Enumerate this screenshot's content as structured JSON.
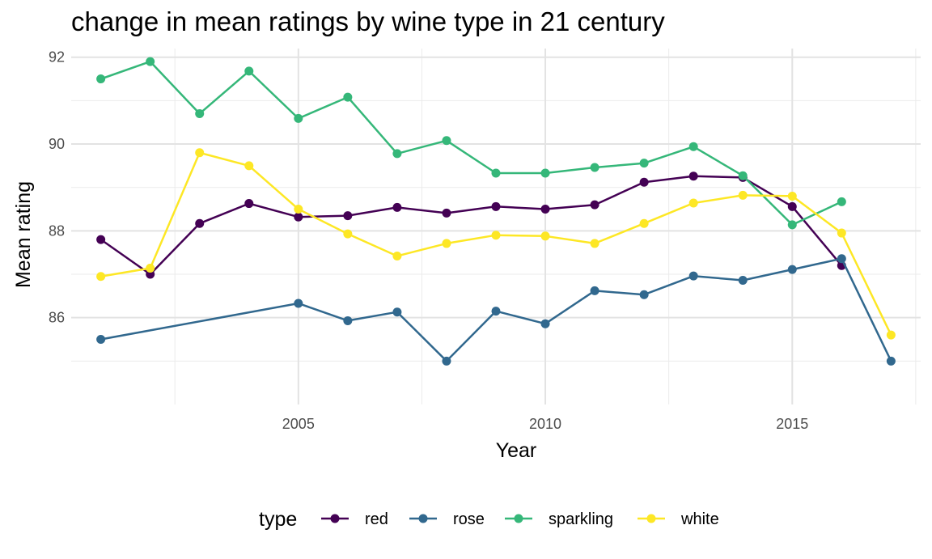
{
  "chart_data": {
    "type": "line",
    "title": "change in mean ratings by wine type in 21 century",
    "xlabel": "Year",
    "ylabel": "Mean rating",
    "xlim": [
      2000.4,
      2017.6
    ],
    "ylim": [
      84.0,
      92.2
    ],
    "x_ticks": [
      2005,
      2010,
      2015
    ],
    "y_ticks": [
      86,
      88,
      90,
      92
    ],
    "grid": true,
    "legend": {
      "title": "type",
      "position": "bottom"
    },
    "series": [
      {
        "name": "red",
        "color": "#440154",
        "x": [
          2001,
          2002,
          2003,
          2004,
          2005,
          2006,
          2007,
          2008,
          2009,
          2010,
          2011,
          2012,
          2013,
          2014,
          2015,
          2016
        ],
        "y": [
          87.8,
          87.0,
          88.17,
          88.63,
          88.32,
          88.35,
          88.54,
          88.41,
          88.56,
          88.5,
          88.6,
          89.12,
          89.26,
          89.23,
          88.56,
          87.2
        ]
      },
      {
        "name": "rose",
        "color": "#31688E",
        "x": [
          2001,
          2005,
          2006,
          2007,
          2008,
          2009,
          2010,
          2011,
          2012,
          2013,
          2014,
          2015,
          2016,
          2017
        ],
        "y": [
          85.5,
          86.33,
          85.93,
          86.13,
          85.0,
          86.15,
          85.86,
          86.62,
          86.53,
          86.96,
          86.86,
          87.11,
          87.36,
          85.0
        ]
      },
      {
        "name": "sparkling",
        "color": "#35B779",
        "x": [
          2001,
          2002,
          2003,
          2004,
          2005,
          2006,
          2007,
          2008,
          2009,
          2010,
          2011,
          2012,
          2013,
          2014,
          2015,
          2016
        ],
        "y": [
          91.5,
          91.9,
          90.7,
          91.68,
          90.59,
          91.08,
          89.78,
          90.08,
          89.33,
          89.33,
          89.46,
          89.56,
          89.94,
          89.27,
          88.14,
          88.67
        ]
      },
      {
        "name": "white",
        "color": "#FDE725",
        "x": [
          2001,
          2002,
          2003,
          2004,
          2005,
          2006,
          2007,
          2008,
          2009,
          2010,
          2011,
          2012,
          2013,
          2014,
          2015,
          2016,
          2017
        ],
        "y": [
          86.95,
          87.14,
          89.8,
          89.5,
          88.5,
          87.93,
          87.42,
          87.71,
          87.9,
          87.88,
          87.71,
          88.17,
          88.64,
          88.82,
          88.8,
          87.95,
          85.6
        ]
      }
    ]
  }
}
